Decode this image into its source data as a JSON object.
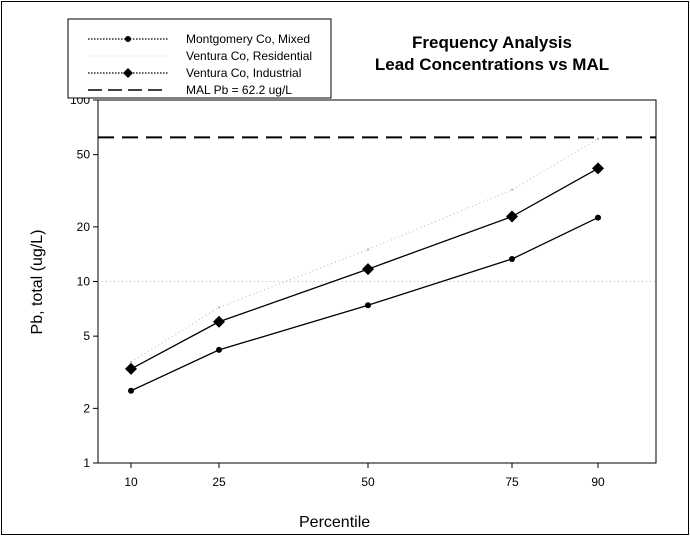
{
  "chart_data": {
    "type": "line",
    "title_lines": [
      "Frequency Analysis",
      "Lead Concentrations vs MAL"
    ],
    "xlabel": "Percentile",
    "ylabel": "Pb, total (ug/L)",
    "x": [
      10,
      25,
      50,
      75,
      90
    ],
    "x_tick_labels": [
      "10",
      "25",
      "50",
      "75",
      "90"
    ],
    "y_scale": "log",
    "ylim": [
      1,
      100
    ],
    "y_tick_values": [
      1,
      2,
      5,
      10,
      20,
      50,
      100
    ],
    "y_tick_labels": [
      "1",
      "2",
      "5",
      "10",
      "20",
      "50",
      "100"
    ],
    "legend_position": "top-left",
    "series": [
      {
        "name": "Montgomery Co, Mixed",
        "marker": "circle",
        "line_style": "solid",
        "color": "#000000",
        "values": [
          2.5,
          4.2,
          7.4,
          13.3,
          22.5
        ]
      },
      {
        "name": "Ventura Co, Residential",
        "marker": "none",
        "line_style": "dotted",
        "color": "#bbbbbb",
        "values": [
          3.6,
          7.2,
          15.0,
          32.0,
          61.0
        ]
      },
      {
        "name": "Ventura Co, Industrial",
        "marker": "diamond",
        "line_style": "solid",
        "color": "#000000",
        "values": [
          3.3,
          6.0,
          11.7,
          22.8,
          42.0
        ]
      }
    ],
    "reference_lines": [
      {
        "name": "MAL Pb = 62.2 ug/L",
        "y": 62.2,
        "line_style": "dashed",
        "color": "#000000"
      },
      {
        "name": "",
        "y": 10,
        "line_style": "dotted",
        "color": "#bbbbbb"
      }
    ]
  }
}
